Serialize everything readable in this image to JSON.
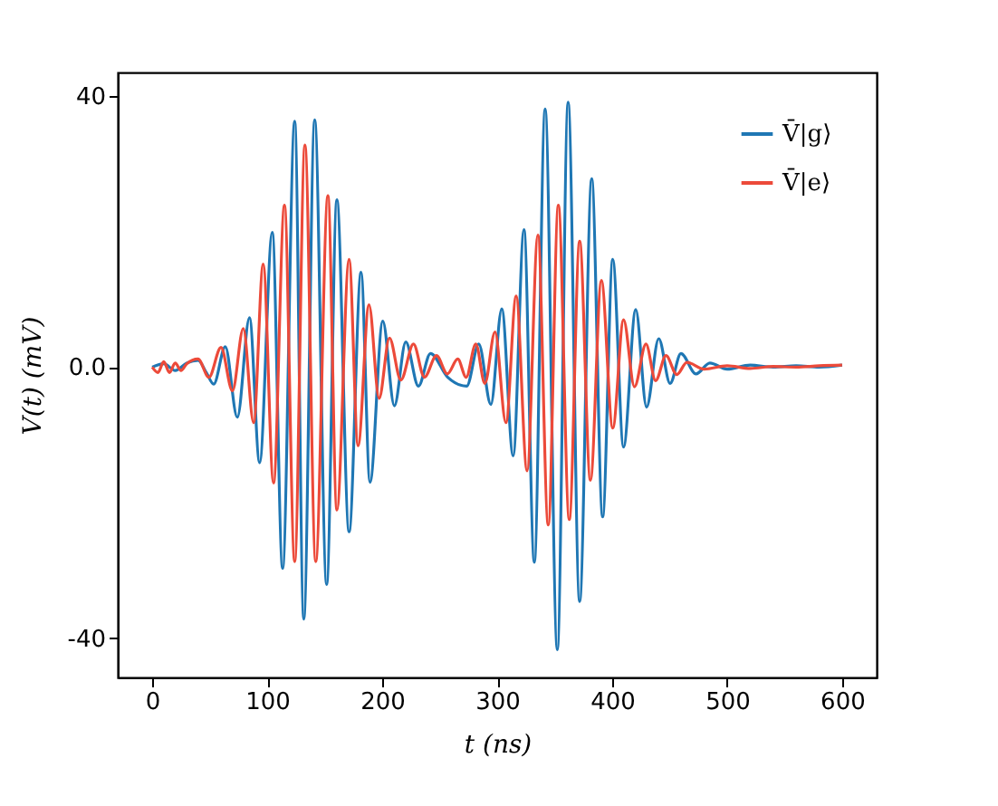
{
  "chart_data": {
    "type": "line",
    "xlabel": "t (ns)",
    "ylabel": "V(t) (mV)",
    "xlim": [
      -30,
      630
    ],
    "ylim": [
      -45.8,
      43.5
    ],
    "xticks": [
      0,
      100,
      200,
      300,
      400,
      500,
      600
    ],
    "yticks": [
      {
        "value": -40,
        "label": "-40"
      },
      {
        "value": 0,
        "label": "0.0"
      },
      40
    ],
    "grid": false,
    "legend": "top right",
    "marker": "none",
    "line_style": "solid",
    "series": [
      {
        "name": "V̄|g⟩",
        "color": "#1f77b4",
        "x": [
          0,
          10,
          20,
          30,
          40,
          47,
          53.5,
          63.5,
          74,
          84.6,
          93.4,
          104.4,
          113.4,
          123.9,
          131.8,
          141.3,
          151.7,
          160.6,
          171.2,
          181.6,
          189.4,
          200.5,
          210.6,
          220.5,
          231.5,
          242,
          257,
          273.5,
          284,
          294.5,
          304,
          313.9,
          323.3,
          332.3,
          341.7,
          352.3,
          361.7,
          371.7,
          382.2,
          391.7,
          400.5,
          409.9,
          420.5,
          429.9,
          440.5,
          450.4,
          459.8,
          472.9,
          485,
          500,
          520,
          540,
          560,
          580,
          600
        ],
        "values": [
          0,
          0.5,
          -0.5,
          0.6,
          1.0,
          -0.8,
          -2.5,
          3.0,
          -7.4,
          7.3,
          -14.1,
          19.9,
          -29.7,
          36.3,
          -37.2,
          36.5,
          -32.1,
          24.7,
          -24.3,
          14.0,
          -17.0,
          6.8,
          -5.7,
          3.7,
          -2.8,
          2.0,
          -1.5,
          -2.8,
          3.4,
          -5.5,
          8.6,
          -13.1,
          20.3,
          -28.8,
          38.1,
          -41.7,
          39.1,
          -34.6,
          27.8,
          -22.1,
          15.9,
          -11.8,
          8.5,
          -5.9,
          4.2,
          -2.4,
          2.0,
          -1.0,
          0.6,
          -0.3,
          0.3,
          0,
          0.2,
          0,
          0.3
        ]
      },
      {
        "name": "V̄|e⟩",
        "color": "#ec4a3a",
        "x": [
          0,
          5,
          10,
          15,
          20,
          25,
          30,
          39.8,
          49.3,
          59.8,
          69.8,
          79.2,
          88.2,
          96.5,
          105.5,
          115,
          123.9,
          132.8,
          142.2,
          152.8,
          160.6,
          171.2,
          179,
          188.5,
          197.3,
          206.3,
          216.2,
          227.2,
          236.7,
          247.2,
          256.7,
          265.7,
          273,
          281.4,
          289.3,
          298.1,
          307.6,
          316.5,
          326,
          335.4,
          344.4,
          353.2,
          362.7,
          371.7,
          381.1,
          390.6,
          400.5,
          409.9,
          419.4,
          429.4,
          437.8,
          446.8,
          456.2,
          465,
          480,
          500,
          520,
          540,
          560,
          580,
          600
        ],
        "values": [
          0,
          -0.8,
          0.8,
          -0.8,
          0.6,
          -0.5,
          0.5,
          1.2,
          -1.5,
          2.9,
          -3.5,
          5.7,
          -8.2,
          15.2,
          -17.1,
          23.9,
          -28.7,
          32.8,
          -28.7,
          25.3,
          -21.1,
          15.9,
          -11.6,
          9.2,
          -4.6,
          4.3,
          -1.9,
          3.4,
          -1.5,
          1.7,
          -1.0,
          1.2,
          -1.5,
          3.4,
          -2.4,
          5.2,
          -8.2,
          10.5,
          -15.3,
          19.5,
          -23.3,
          23.9,
          -22.5,
          18.6,
          -16.7,
          12.8,
          -9.0,
          7.0,
          -2.9,
          3.4,
          -2.0,
          1.7,
          -1.1,
          0.7,
          -0.3,
          0.2,
          -0.2,
          0.1,
          0,
          0.2,
          0.3
        ]
      }
    ]
  }
}
